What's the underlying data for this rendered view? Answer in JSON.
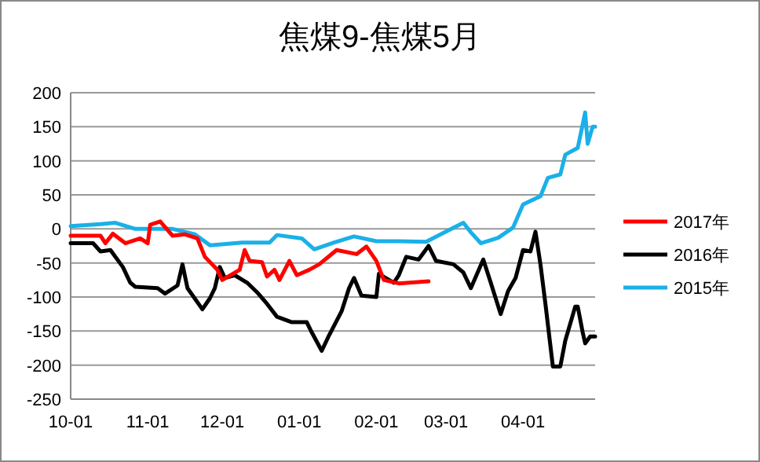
{
  "chart_data": {
    "type": "line",
    "title": "焦煤9-焦煤5月",
    "legend": "right",
    "grid": "y",
    "line_style": "solid",
    "marker": "none",
    "categories": [
      "10-01",
      null,
      null,
      null,
      null,
      null,
      null,
      null,
      null,
      null,
      null,
      null,
      null,
      null,
      null,
      null,
      null,
      null,
      null,
      null,
      null,
      null,
      null,
      null,
      null,
      null,
      null,
      null,
      null,
      null,
      null,
      "11-01",
      null,
      null,
      null,
      null,
      null,
      null,
      null,
      null,
      null,
      null,
      null,
      null,
      null,
      null,
      null,
      null,
      null,
      null,
      null,
      null,
      null,
      null,
      null,
      null,
      null,
      null,
      null,
      null,
      null,
      "12-01",
      null,
      null,
      null,
      null,
      null,
      null,
      null,
      null,
      null,
      null,
      null,
      null,
      null,
      null,
      null,
      null,
      null,
      null,
      null,
      null,
      null,
      null,
      null,
      null,
      null,
      null,
      null,
      null,
      null,
      null,
      "01-01",
      null,
      null,
      null,
      null,
      null,
      null,
      null,
      null,
      null,
      null,
      null,
      null,
      null,
      null,
      null,
      null,
      null,
      null,
      null,
      null,
      null,
      null,
      null,
      null,
      null,
      null,
      null,
      null,
      null,
      null,
      "02-01",
      null,
      null,
      null,
      null,
      null,
      null,
      null,
      null,
      null,
      null,
      null,
      null,
      null,
      null,
      null,
      null,
      null,
      null,
      null,
      null,
      null,
      null,
      null,
      null,
      null,
      null,
      null,
      "03-01",
      null,
      null,
      null,
      null,
      null,
      null,
      null,
      null,
      null,
      null,
      null,
      null,
      null,
      null,
      null,
      null,
      null,
      null,
      null,
      null,
      null,
      null,
      null,
      null,
      null,
      null,
      null,
      null,
      null,
      null,
      "04-01",
      null,
      null,
      null,
      null,
      null,
      null,
      null,
      null,
      null,
      null,
      null,
      null,
      null,
      null,
      null,
      null,
      null,
      null,
      null,
      null,
      null,
      null,
      null,
      null,
      null,
      null,
      null,
      null,
      null
    ],
    "ylim": [
      -250,
      200
    ],
    "yticks": [
      -250,
      -200,
      -150,
      -100,
      -50,
      0,
      50,
      100,
      150,
      200
    ],
    "series": [
      {
        "name": "2017年",
        "color": "#ff0000",
        "values": [
          -10,
          null,
          null,
          null,
          null,
          null,
          null,
          null,
          null,
          null,
          null,
          null,
          -10,
          null,
          -21,
          null,
          null,
          -7,
          null,
          null,
          null,
          null,
          -21,
          null,
          null,
          null,
          null,
          null,
          -14,
          null,
          null,
          -21,
          6,
          null,
          null,
          null,
          11,
          null,
          null,
          null,
          null,
          -10,
          null,
          null,
          null,
          null,
          -8,
          null,
          null,
          null,
          null,
          -14,
          null,
          null,
          -41,
          null,
          null,
          null,
          null,
          -60,
          null,
          -75,
          null,
          null,
          null,
          null,
          null,
          null,
          -60,
          null,
          -31,
          null,
          -47,
          null,
          null,
          null,
          null,
          -49,
          null,
          -70,
          null,
          null,
          -60,
          null,
          -75,
          null,
          null,
          null,
          -47,
          null,
          null,
          -68,
          null,
          null,
          null,
          null,
          -60,
          null,
          null,
          null,
          -52,
          null,
          null,
          null,
          null,
          null,
          null,
          -31,
          null,
          null,
          null,
          null,
          null,
          null,
          null,
          -37,
          null,
          null,
          null,
          -26,
          null,
          null,
          null,
          -47,
          null,
          null,
          -75,
          null,
          null,
          null,
          null,
          null,
          -80,
          null,
          null,
          null,
          null,
          null,
          null,
          null,
          null,
          null,
          null,
          null,
          -77,
          null,
          null,
          null,
          null,
          null,
          null,
          null,
          null,
          null,
          null,
          null,
          null,
          null,
          null,
          null,
          null,
          null,
          null,
          null,
          null,
          null,
          null,
          null,
          null,
          null,
          null,
          null,
          null,
          null,
          null,
          null,
          null,
          null,
          null,
          null,
          null,
          null,
          null,
          null,
          null,
          null,
          null,
          null,
          null,
          null,
          null,
          null,
          null,
          null,
          null,
          null,
          null,
          null,
          null,
          null,
          null,
          null,
          null,
          null,
          null,
          null,
          null,
          null,
          null,
          null,
          null,
          null
        ]
      },
      {
        "name": "2016年",
        "color": "#000000",
        "values": [
          -21,
          null,
          null,
          null,
          null,
          null,
          null,
          null,
          null,
          -21,
          null,
          null,
          -33,
          null,
          null,
          null,
          -31,
          null,
          null,
          null,
          null,
          -56,
          null,
          null,
          -79,
          null,
          -85,
          null,
          null,
          null,
          null,
          null,
          null,
          null,
          null,
          -87,
          null,
          null,
          -95,
          null,
          null,
          null,
          null,
          -83,
          null,
          -52,
          null,
          -87,
          null,
          null,
          null,
          null,
          null,
          -118,
          null,
          null,
          -102,
          null,
          -87,
          null,
          -56,
          null,
          -72,
          null,
          null,
          null,
          -68,
          null,
          null,
          null,
          null,
          -79,
          null,
          null,
          null,
          -93,
          null,
          null,
          null,
          -110,
          null,
          null,
          null,
          -129,
          null,
          null,
          null,
          null,
          null,
          -137,
          null,
          null,
          null,
          null,
          null,
          -137,
          null,
          -152,
          null,
          null,
          null,
          -179,
          null,
          null,
          -156,
          null,
          null,
          null,
          null,
          -121,
          null,
          null,
          -87,
          null,
          -72,
          null,
          null,
          -98,
          null,
          null,
          null,
          null,
          null,
          -100,
          -66,
          null,
          null,
          null,
          null,
          null,
          -79,
          null,
          -68,
          null,
          null,
          -41,
          null,
          null,
          null,
          null,
          -45,
          null,
          null,
          null,
          -25,
          null,
          null,
          -47,
          null,
          null,
          null,
          null,
          null,
          null,
          -52,
          null,
          null,
          null,
          -64,
          null,
          null,
          -87,
          null,
          null,
          null,
          null,
          -45,
          null,
          null,
          -79,
          null,
          null,
          null,
          -125,
          null,
          null,
          -91,
          null,
          null,
          -72,
          null,
          null,
          -31,
          null,
          null,
          -33,
          null,
          -4,
          null,
          -52,
          null,
          -110,
          null,
          null,
          -202,
          null,
          null,
          -202,
          null,
          -164,
          null,
          null,
          null,
          -114,
          -114,
          null,
          -152,
          -168,
          null,
          -158,
          null,
          -158
        ]
      },
      {
        "name": "2015年",
        "color": "#1ab0e8",
        "values": [
          4,
          null,
          null,
          null,
          null,
          null,
          null,
          null,
          null,
          null,
          null,
          null,
          7,
          null,
          null,
          null,
          null,
          null,
          9,
          null,
          null,
          null,
          null,
          null,
          null,
          null,
          0,
          null,
          null,
          null,
          null,
          null,
          null,
          null,
          null,
          null,
          null,
          null,
          null,
          null,
          null,
          0,
          null,
          null,
          null,
          null,
          null,
          null,
          null,
          null,
          -8,
          null,
          null,
          null,
          null,
          null,
          -24,
          null,
          null,
          null,
          null,
          null,
          null,
          null,
          null,
          null,
          null,
          null,
          null,
          -20,
          null,
          null,
          null,
          null,
          null,
          null,
          null,
          null,
          null,
          null,
          -20,
          null,
          null,
          -9,
          null,
          null,
          null,
          null,
          null,
          null,
          null,
          null,
          null,
          -14,
          null,
          null,
          null,
          null,
          -30,
          null,
          null,
          null,
          null,
          null,
          null,
          null,
          -20,
          null,
          null,
          null,
          null,
          null,
          null,
          null,
          -11,
          null,
          null,
          null,
          null,
          null,
          null,
          null,
          null,
          -18,
          null,
          null,
          null,
          null,
          null,
          null,
          -18,
          null,
          null,
          null,
          null,
          null,
          null,
          null,
          null,
          null,
          null,
          null,
          null,
          -19,
          null,
          null,
          null,
          null,
          null,
          null,
          null,
          -4,
          null,
          null,
          null,
          null,
          null,
          null,
          9,
          null,
          null,
          -5,
          null,
          null,
          null,
          -21,
          null,
          null,
          null,
          null,
          null,
          null,
          -13,
          null,
          null,
          null,
          null,
          null,
          2,
          null,
          null,
          null,
          36,
          null,
          null,
          null,
          null,
          null,
          null,
          48,
          null,
          null,
          75,
          null,
          null,
          null,
          null,
          80,
          null,
          109,
          null,
          null,
          null,
          null,
          119,
          null,
          null,
          171,
          125,
          null,
          150,
          150
        ]
      }
    ]
  }
}
